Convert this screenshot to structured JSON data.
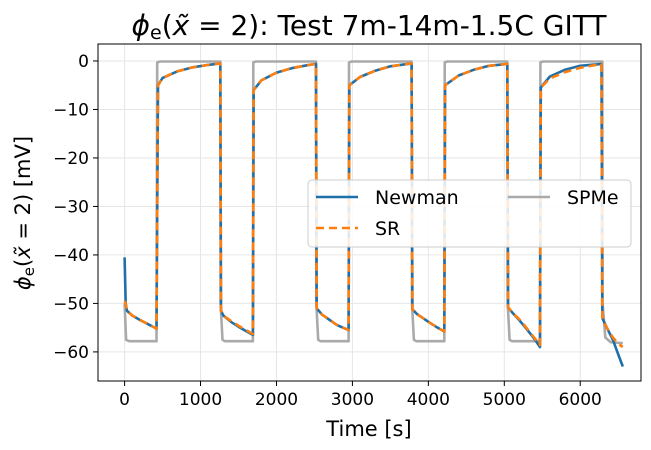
{
  "chart_data": {
    "type": "line",
    "title": "ϕe(x̃ = 2): Test 7m-14m-1.5C GITT",
    "xlabel": "Time [s]",
    "ylabel": "ϕe(x̃ = 2) [mV]",
    "xlim": [
      -350,
      6800
    ],
    "ylim": [
      -66,
      3.5
    ],
    "xticks": [
      0,
      1000,
      2000,
      3000,
      4000,
      5000,
      6000
    ],
    "yticks": [
      0,
      -10,
      -20,
      -30,
      -40,
      -50,
      -60
    ],
    "grid": true,
    "legend_position": "center-right",
    "colors": {
      "Newman": "#1f6fa8",
      "SR": "#ff7f0e",
      "SPMe": "#aaaaaa"
    },
    "series": [
      {
        "name": "Newman",
        "style": "solid",
        "points": [
          [
            0,
            -40.5
          ],
          [
            15,
            -50
          ],
          [
            30,
            -51.5
          ],
          [
            100,
            -52.5
          ],
          [
            200,
            -53.4
          ],
          [
            300,
            -54.2
          ],
          [
            420,
            -55.2
          ],
          [
            440,
            -5
          ],
          [
            500,
            -3.5
          ],
          [
            700,
            -2.1
          ],
          [
            900,
            -1.3
          ],
          [
            1100,
            -0.8
          ],
          [
            1260,
            -0.5
          ],
          [
            1270,
            -51.5
          ],
          [
            1300,
            -52.5
          ],
          [
            1400,
            -53.8
          ],
          [
            1500,
            -54.8
          ],
          [
            1600,
            -55.7
          ],
          [
            1690,
            -56.5
          ],
          [
            1700,
            -6
          ],
          [
            1800,
            -4
          ],
          [
            2000,
            -2.4
          ],
          [
            2200,
            -1.5
          ],
          [
            2400,
            -0.9
          ],
          [
            2520,
            -0.6
          ],
          [
            2530,
            -51
          ],
          [
            2600,
            -52.3
          ],
          [
            2700,
            -53.4
          ],
          [
            2800,
            -54.5
          ],
          [
            2950,
            -55.5
          ],
          [
            2960,
            -5
          ],
          [
            3100,
            -3.3
          ],
          [
            3300,
            -2
          ],
          [
            3500,
            -1.1
          ],
          [
            3780,
            -0.5
          ],
          [
            3790,
            -51.2
          ],
          [
            3850,
            -52.2
          ],
          [
            4000,
            -53.8
          ],
          [
            4100,
            -54.8
          ],
          [
            4210,
            -55.8
          ],
          [
            4220,
            -5
          ],
          [
            4400,
            -3
          ],
          [
            4600,
            -1.8
          ],
          [
            4800,
            -1
          ],
          [
            5040,
            -0.6
          ],
          [
            5050,
            -50.8
          ],
          [
            5100,
            -51.8
          ],
          [
            5200,
            -53.5
          ],
          [
            5300,
            -55.4
          ],
          [
            5400,
            -57.4
          ],
          [
            5470,
            -59
          ],
          [
            5480,
            -5.5
          ],
          [
            5600,
            -3.2
          ],
          [
            5800,
            -1.8
          ],
          [
            6000,
            -1
          ],
          [
            6280,
            -0.6
          ],
          [
            6290,
            -53
          ],
          [
            6350,
            -55
          ],
          [
            6430,
            -57.5
          ],
          [
            6500,
            -60.5
          ],
          [
            6560,
            -63
          ]
        ]
      },
      {
        "name": "SR",
        "style": "dashed",
        "points": [
          [
            0,
            -49.5
          ],
          [
            15,
            -50
          ],
          [
            30,
            -51.5
          ],
          [
            100,
            -52.5
          ],
          [
            200,
            -53.4
          ],
          [
            300,
            -54.2
          ],
          [
            420,
            -55.2
          ],
          [
            440,
            -5
          ],
          [
            500,
            -3.5
          ],
          [
            700,
            -2.1
          ],
          [
            900,
            -1.3
          ],
          [
            1100,
            -0.8
          ],
          [
            1260,
            -0.5
          ],
          [
            1270,
            -51.5
          ],
          [
            1300,
            -52.5
          ],
          [
            1400,
            -53.6
          ],
          [
            1500,
            -54.6
          ],
          [
            1600,
            -55.5
          ],
          [
            1690,
            -56.3
          ],
          [
            1700,
            -6
          ],
          [
            1800,
            -4
          ],
          [
            2000,
            -2.4
          ],
          [
            2200,
            -1.5
          ],
          [
            2400,
            -0.9
          ],
          [
            2520,
            -0.6
          ],
          [
            2530,
            -51
          ],
          [
            2600,
            -52.3
          ],
          [
            2700,
            -53.4
          ],
          [
            2800,
            -54.5
          ],
          [
            2950,
            -55.5
          ],
          [
            2960,
            -5
          ],
          [
            3100,
            -3.3
          ],
          [
            3300,
            -2
          ],
          [
            3500,
            -1.1
          ],
          [
            3780,
            -0.5
          ],
          [
            3790,
            -51.2
          ],
          [
            3850,
            -52.2
          ],
          [
            4000,
            -53.8
          ],
          [
            4100,
            -54.8
          ],
          [
            4210,
            -55.8
          ],
          [
            4220,
            -5
          ],
          [
            4400,
            -3
          ],
          [
            4600,
            -1.8
          ],
          [
            4800,
            -1
          ],
          [
            5040,
            -0.6
          ],
          [
            5050,
            -50.8
          ],
          [
            5100,
            -51.8
          ],
          [
            5200,
            -53.3
          ],
          [
            5300,
            -55.2
          ],
          [
            5400,
            -57.2
          ],
          [
            5470,
            -58.6
          ],
          [
            5480,
            -5.5
          ],
          [
            5600,
            -3.6
          ],
          [
            5800,
            -2.3
          ],
          [
            6000,
            -1.4
          ],
          [
            6280,
            -0.6
          ],
          [
            6290,
            -53
          ],
          [
            6350,
            -55
          ],
          [
            6430,
            -57
          ],
          [
            6500,
            -58.3
          ],
          [
            6560,
            -59
          ]
        ]
      },
      {
        "name": "SPMe",
        "style": "solid",
        "points": [
          [
            0,
            -50
          ],
          [
            20,
            -57.5
          ],
          [
            60,
            -57.8
          ],
          [
            420,
            -57.8
          ],
          [
            430,
            -0.3
          ],
          [
            470,
            -0.1
          ],
          [
            1260,
            -0.1
          ],
          [
            1265,
            -50
          ],
          [
            1290,
            -57.5
          ],
          [
            1320,
            -57.8
          ],
          [
            1690,
            -57.8
          ],
          [
            1695,
            -0.3
          ],
          [
            1730,
            -0.1
          ],
          [
            2520,
            -0.1
          ],
          [
            2525,
            -50
          ],
          [
            2550,
            -57.5
          ],
          [
            2580,
            -57.8
          ],
          [
            2950,
            -57.8
          ],
          [
            2955,
            -0.3
          ],
          [
            2990,
            -0.1
          ],
          [
            3780,
            -0.1
          ],
          [
            3785,
            -50
          ],
          [
            3810,
            -57.5
          ],
          [
            3840,
            -57.8
          ],
          [
            4210,
            -57.8
          ],
          [
            4215,
            -0.3
          ],
          [
            4250,
            -0.1
          ],
          [
            5040,
            -0.1
          ],
          [
            5045,
            -50
          ],
          [
            5070,
            -57.5
          ],
          [
            5100,
            -57.8
          ],
          [
            5470,
            -57.8
          ],
          [
            5475,
            -0.3
          ],
          [
            5510,
            -0.1
          ],
          [
            6290,
            -0.1
          ],
          [
            6295,
            -50
          ],
          [
            6330,
            -57
          ],
          [
            6400,
            -58
          ],
          [
            6560,
            -58.2
          ]
        ]
      }
    ]
  }
}
